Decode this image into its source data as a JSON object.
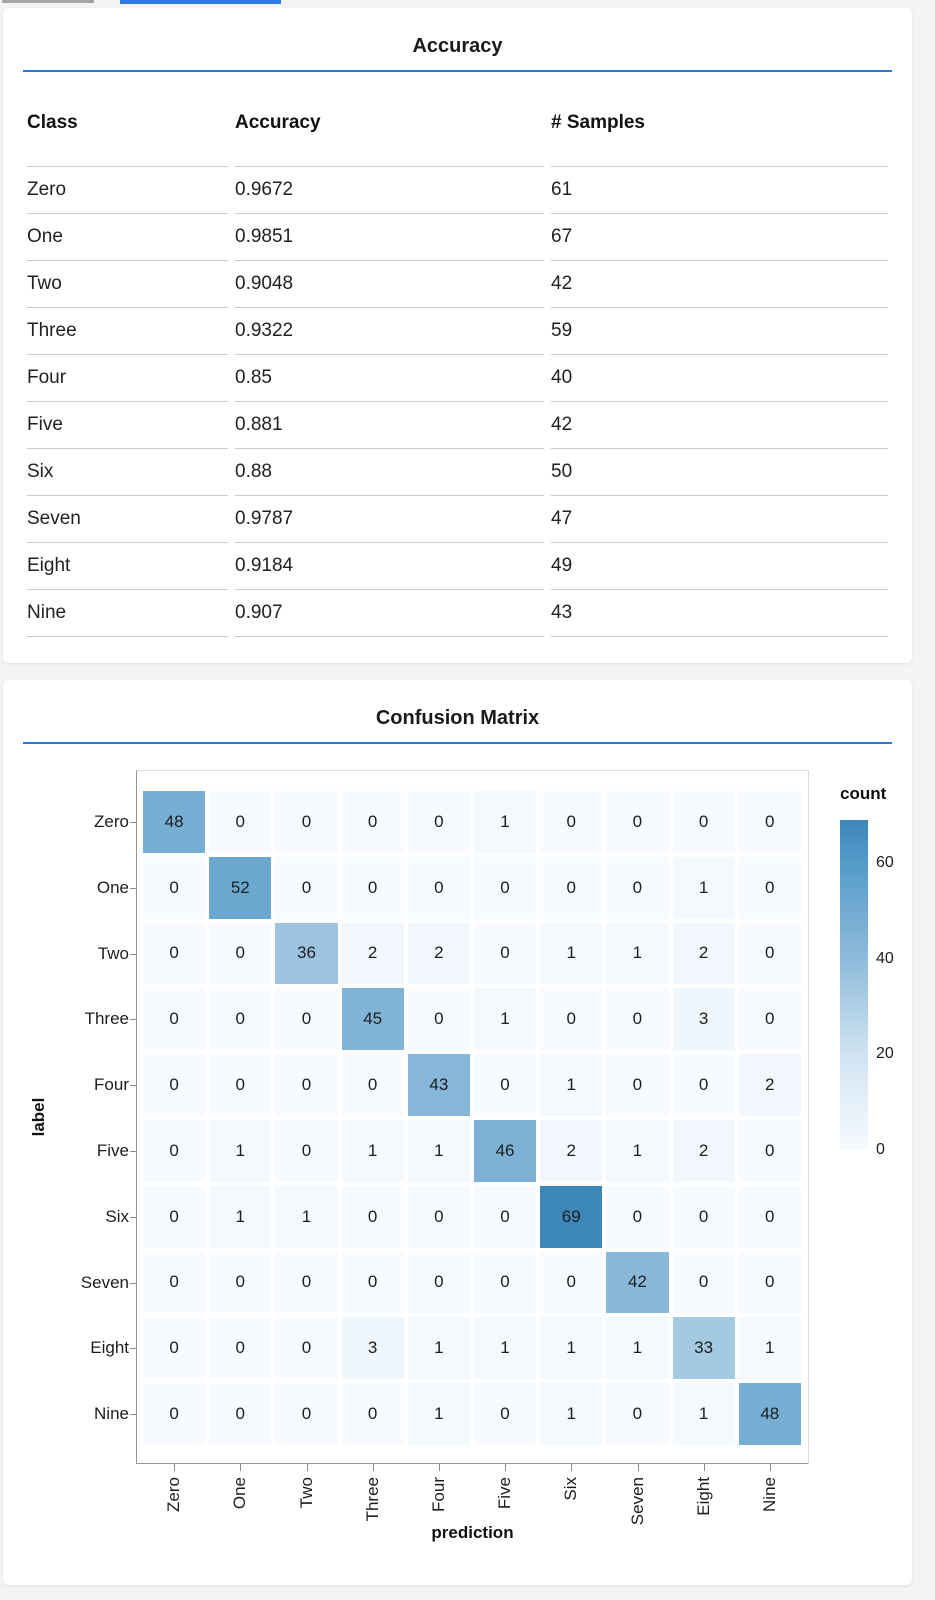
{
  "colors": {
    "rule_blue": "#2b78e8",
    "tab_indicator_gray": "#a5a5a5",
    "tab_indicator_blue": "#2d7ce5",
    "heatmap_min": "#f7fbff",
    "heatmap_max": "#3d86ba"
  },
  "accuracy_card": {
    "title": "Accuracy"
  },
  "confusion_card": {
    "title": "Confusion Matrix"
  },
  "chart_data": [
    {
      "type": "table",
      "title": "Accuracy",
      "columns": [
        "Class",
        "Accuracy",
        "# Samples"
      ],
      "rows": [
        [
          "Zero",
          "0.9672",
          "61"
        ],
        [
          "One",
          "0.9851",
          "67"
        ],
        [
          "Two",
          "0.9048",
          "42"
        ],
        [
          "Three",
          "0.9322",
          "59"
        ],
        [
          "Four",
          "0.85",
          "40"
        ],
        [
          "Five",
          "0.881",
          "42"
        ],
        [
          "Six",
          "0.88",
          "50"
        ],
        [
          "Seven",
          "0.9787",
          "47"
        ],
        [
          "Eight",
          "0.9184",
          "49"
        ],
        [
          "Nine",
          "0.907",
          "43"
        ]
      ]
    },
    {
      "type": "heatmap",
      "title": "Confusion Matrix",
      "xlabel": "prediction",
      "ylabel": "label",
      "x_categories": [
        "Zero",
        "One",
        "Two",
        "Three",
        "Four",
        "Five",
        "Six",
        "Seven",
        "Eight",
        "Nine"
      ],
      "y_categories": [
        "Zero",
        "One",
        "Two",
        "Three",
        "Four",
        "Five",
        "Six",
        "Seven",
        "Eight",
        "Nine"
      ],
      "matrix": [
        [
          48,
          0,
          0,
          0,
          0,
          1,
          0,
          0,
          0,
          0
        ],
        [
          0,
          52,
          0,
          0,
          0,
          0,
          0,
          0,
          1,
          0
        ],
        [
          0,
          0,
          36,
          2,
          2,
          0,
          1,
          1,
          2,
          0
        ],
        [
          0,
          0,
          0,
          45,
          0,
          1,
          0,
          0,
          3,
          0
        ],
        [
          0,
          0,
          0,
          0,
          43,
          0,
          1,
          0,
          0,
          2
        ],
        [
          0,
          1,
          0,
          1,
          1,
          46,
          2,
          1,
          2,
          0
        ],
        [
          0,
          1,
          1,
          0,
          0,
          0,
          69,
          0,
          0,
          0
        ],
        [
          0,
          0,
          0,
          0,
          0,
          0,
          0,
          42,
          0,
          0
        ],
        [
          0,
          0,
          0,
          3,
          1,
          1,
          1,
          1,
          33,
          1
        ],
        [
          0,
          0,
          0,
          0,
          1,
          0,
          1,
          0,
          1,
          48
        ]
      ],
      "legend": {
        "title": "count",
        "ticks": [
          60,
          40,
          20,
          0
        ],
        "domain": [
          0,
          69
        ],
        "position": "right"
      },
      "color_scale": {
        "scheme": "blues",
        "stops": [
          [
            0,
            "#f7fbff"
          ],
          [
            5,
            "#eaf2fa"
          ],
          [
            20,
            "#cfe3f1"
          ],
          [
            40,
            "#8fbbdb"
          ],
          [
            60,
            "#539bc8"
          ],
          [
            69,
            "#3d86ba"
          ]
        ]
      },
      "grid": false
    }
  ]
}
